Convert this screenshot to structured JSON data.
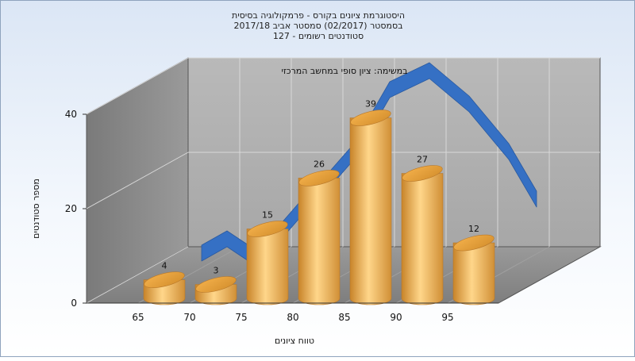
{
  "chart_data": {
    "type": "bar",
    "title": [
      "היסטוגרמת ציונים בקורס - פרמקולוגיה בסיסית",
      "בסמסטר  (02/2017)  סמסטר אביב 2017/18",
      "סטודנטים רשומים - 127"
    ],
    "annotation": "במשימה: ציון סופי במחשב המרכזי",
    "xlabel": "טווח ציונים",
    "ylabel": "מספר סטודנטים",
    "categories": [
      "65",
      "70",
      "75",
      "80",
      "85",
      "90",
      "95"
    ],
    "values": [
      4,
      3,
      15,
      26,
      39,
      27,
      12
    ],
    "yticks": [
      "0",
      "20",
      "40"
    ],
    "ylim": [
      0,
      40
    ],
    "grid": true,
    "trend_line": "normal curve",
    "colors": {
      "bars": "#f0b45a",
      "trend": "#3a72c4",
      "walls": "#a9a9a9",
      "floor": "#8a8a8a"
    }
  }
}
